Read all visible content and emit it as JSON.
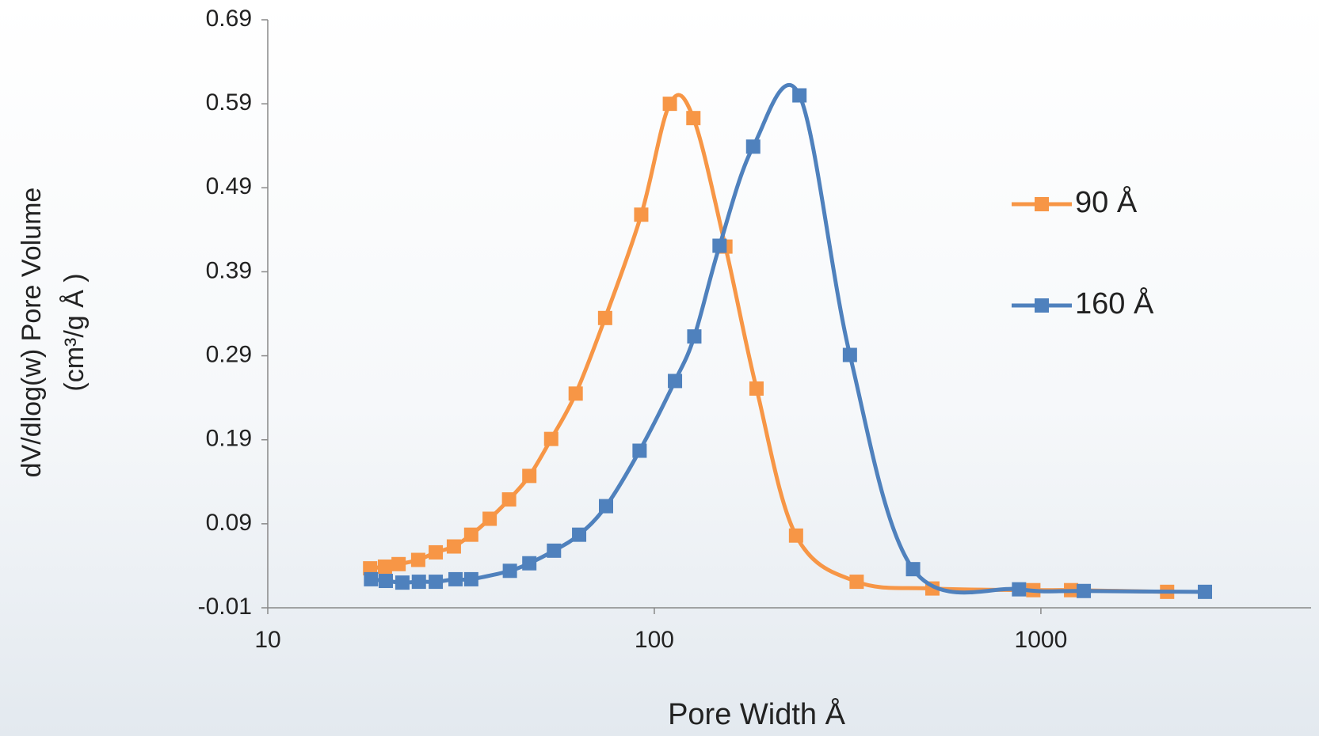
{
  "chart_data": {
    "type": "line",
    "x_label": "Pore Width Å",
    "y_label": [
      "dV/dlog(w) Pore Volume",
      "(cm³/g Å )"
    ],
    "xlim": [
      10,
      5000
    ],
    "xticks": [
      10,
      100,
      1000
    ],
    "x_scale": "log",
    "ylim": [
      -0.01,
      0.69
    ],
    "yticks": [
      -0.01,
      0.09,
      0.19,
      0.29,
      0.39,
      0.49,
      0.59,
      0.69
    ],
    "legend": "right",
    "grid": false,
    "series": [
      {
        "name": "90 Å",
        "color": "#f79646",
        "x": [
          18.4,
          20.1,
          21.8,
          24.5,
          27.2,
          30.3,
          33.6,
          37.5,
          42.1,
          47.5,
          54.1,
          62.6,
          74.6,
          92.5,
          109.7,
          126.2,
          152.7,
          183.8,
          232.6,
          333.8,
          524,
          956,
          1197,
          2121
        ],
        "values": [
          0.037,
          0.039,
          0.042,
          0.047,
          0.056,
          0.063,
          0.077,
          0.096,
          0.119,
          0.147,
          0.191,
          0.245,
          0.335,
          0.458,
          0.59,
          0.573,
          0.42,
          0.251,
          0.076,
          0.021,
          0.013,
          0.011,
          0.011,
          0.009
        ]
      },
      {
        "name": "160 Å",
        "color": "#4f81bd",
        "x": [
          18.5,
          20.2,
          22.3,
          24.6,
          27.2,
          30.6,
          33.6,
          42.3,
          47.5,
          55.0,
          63.9,
          75.0,
          91.6,
          113.1,
          126.9,
          147.5,
          180.2,
          237.4,
          320.6,
          467,
          878,
          1291,
          2657
        ],
        "values": [
          0.024,
          0.022,
          0.02,
          0.021,
          0.021,
          0.024,
          0.024,
          0.034,
          0.043,
          0.058,
          0.077,
          0.111,
          0.177,
          0.26,
          0.313,
          0.421,
          0.539,
          0.6,
          0.291,
          0.036,
          0.012,
          0.01,
          0.009
        ]
      }
    ]
  }
}
